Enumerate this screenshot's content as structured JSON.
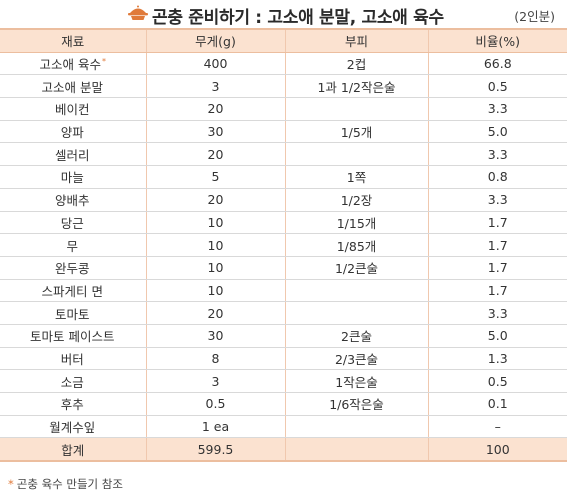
{
  "title": "곤충 준비하기 : 고소애 분말, 고소애 육수",
  "serving": "(2인분)",
  "icon": "pot-icon",
  "accent_color": "#e07a3a",
  "header_bg": "#fbe2d0",
  "table": {
    "headers": [
      "재료",
      "무게(g)",
      "부피",
      "비율(%)"
    ],
    "rows": [
      {
        "name": "고소애 육수",
        "mark": "*",
        "weight": "400",
        "volume": "2컵",
        "ratio": "66.8"
      },
      {
        "name": "고소애 분말",
        "mark": "",
        "weight": "3",
        "volume": "1과 1/2작은술",
        "ratio": "0.5"
      },
      {
        "name": "베이컨",
        "mark": "",
        "weight": "20",
        "volume": "",
        "ratio": "3.3"
      },
      {
        "name": "양파",
        "mark": "",
        "weight": "30",
        "volume": "1/5개",
        "ratio": "5.0"
      },
      {
        "name": "셀러리",
        "mark": "",
        "weight": "20",
        "volume": "",
        "ratio": "3.3"
      },
      {
        "name": "마늘",
        "mark": "",
        "weight": "5",
        "volume": "1쪽",
        "ratio": "0.8"
      },
      {
        "name": "양배추",
        "mark": "",
        "weight": "20",
        "volume": "1/2장",
        "ratio": "3.3"
      },
      {
        "name": "당근",
        "mark": "",
        "weight": "10",
        "volume": "1/15개",
        "ratio": "1.7"
      },
      {
        "name": "무",
        "mark": "",
        "weight": "10",
        "volume": "1/85개",
        "ratio": "1.7"
      },
      {
        "name": "완두콩",
        "mark": "",
        "weight": "10",
        "volume": "1/2큰술",
        "ratio": "1.7"
      },
      {
        "name": "스파게티 면",
        "mark": "",
        "weight": "10",
        "volume": "",
        "ratio": "1.7"
      },
      {
        "name": "토마토",
        "mark": "",
        "weight": "20",
        "volume": "",
        "ratio": "3.3"
      },
      {
        "name": "토마토 페이스트",
        "mark": "",
        "weight": "30",
        "volume": "2큰술",
        "ratio": "5.0"
      },
      {
        "name": "버터",
        "mark": "",
        "weight": "8",
        "volume": "2/3큰술",
        "ratio": "1.3"
      },
      {
        "name": "소금",
        "mark": "",
        "weight": "3",
        "volume": "1작은술",
        "ratio": "0.5"
      },
      {
        "name": "후추",
        "mark": "",
        "weight": "0.5",
        "volume": "1/6작은술",
        "ratio": "0.1"
      },
      {
        "name": "월계수잎",
        "mark": "",
        "weight": "1 ea",
        "volume": "",
        "ratio": "–"
      }
    ],
    "total": {
      "name": "합계",
      "weight": "599.5",
      "volume": "",
      "ratio": "100"
    }
  },
  "footnote": {
    "mark": "*",
    "text": "곤충 육수 만들기 참조"
  }
}
